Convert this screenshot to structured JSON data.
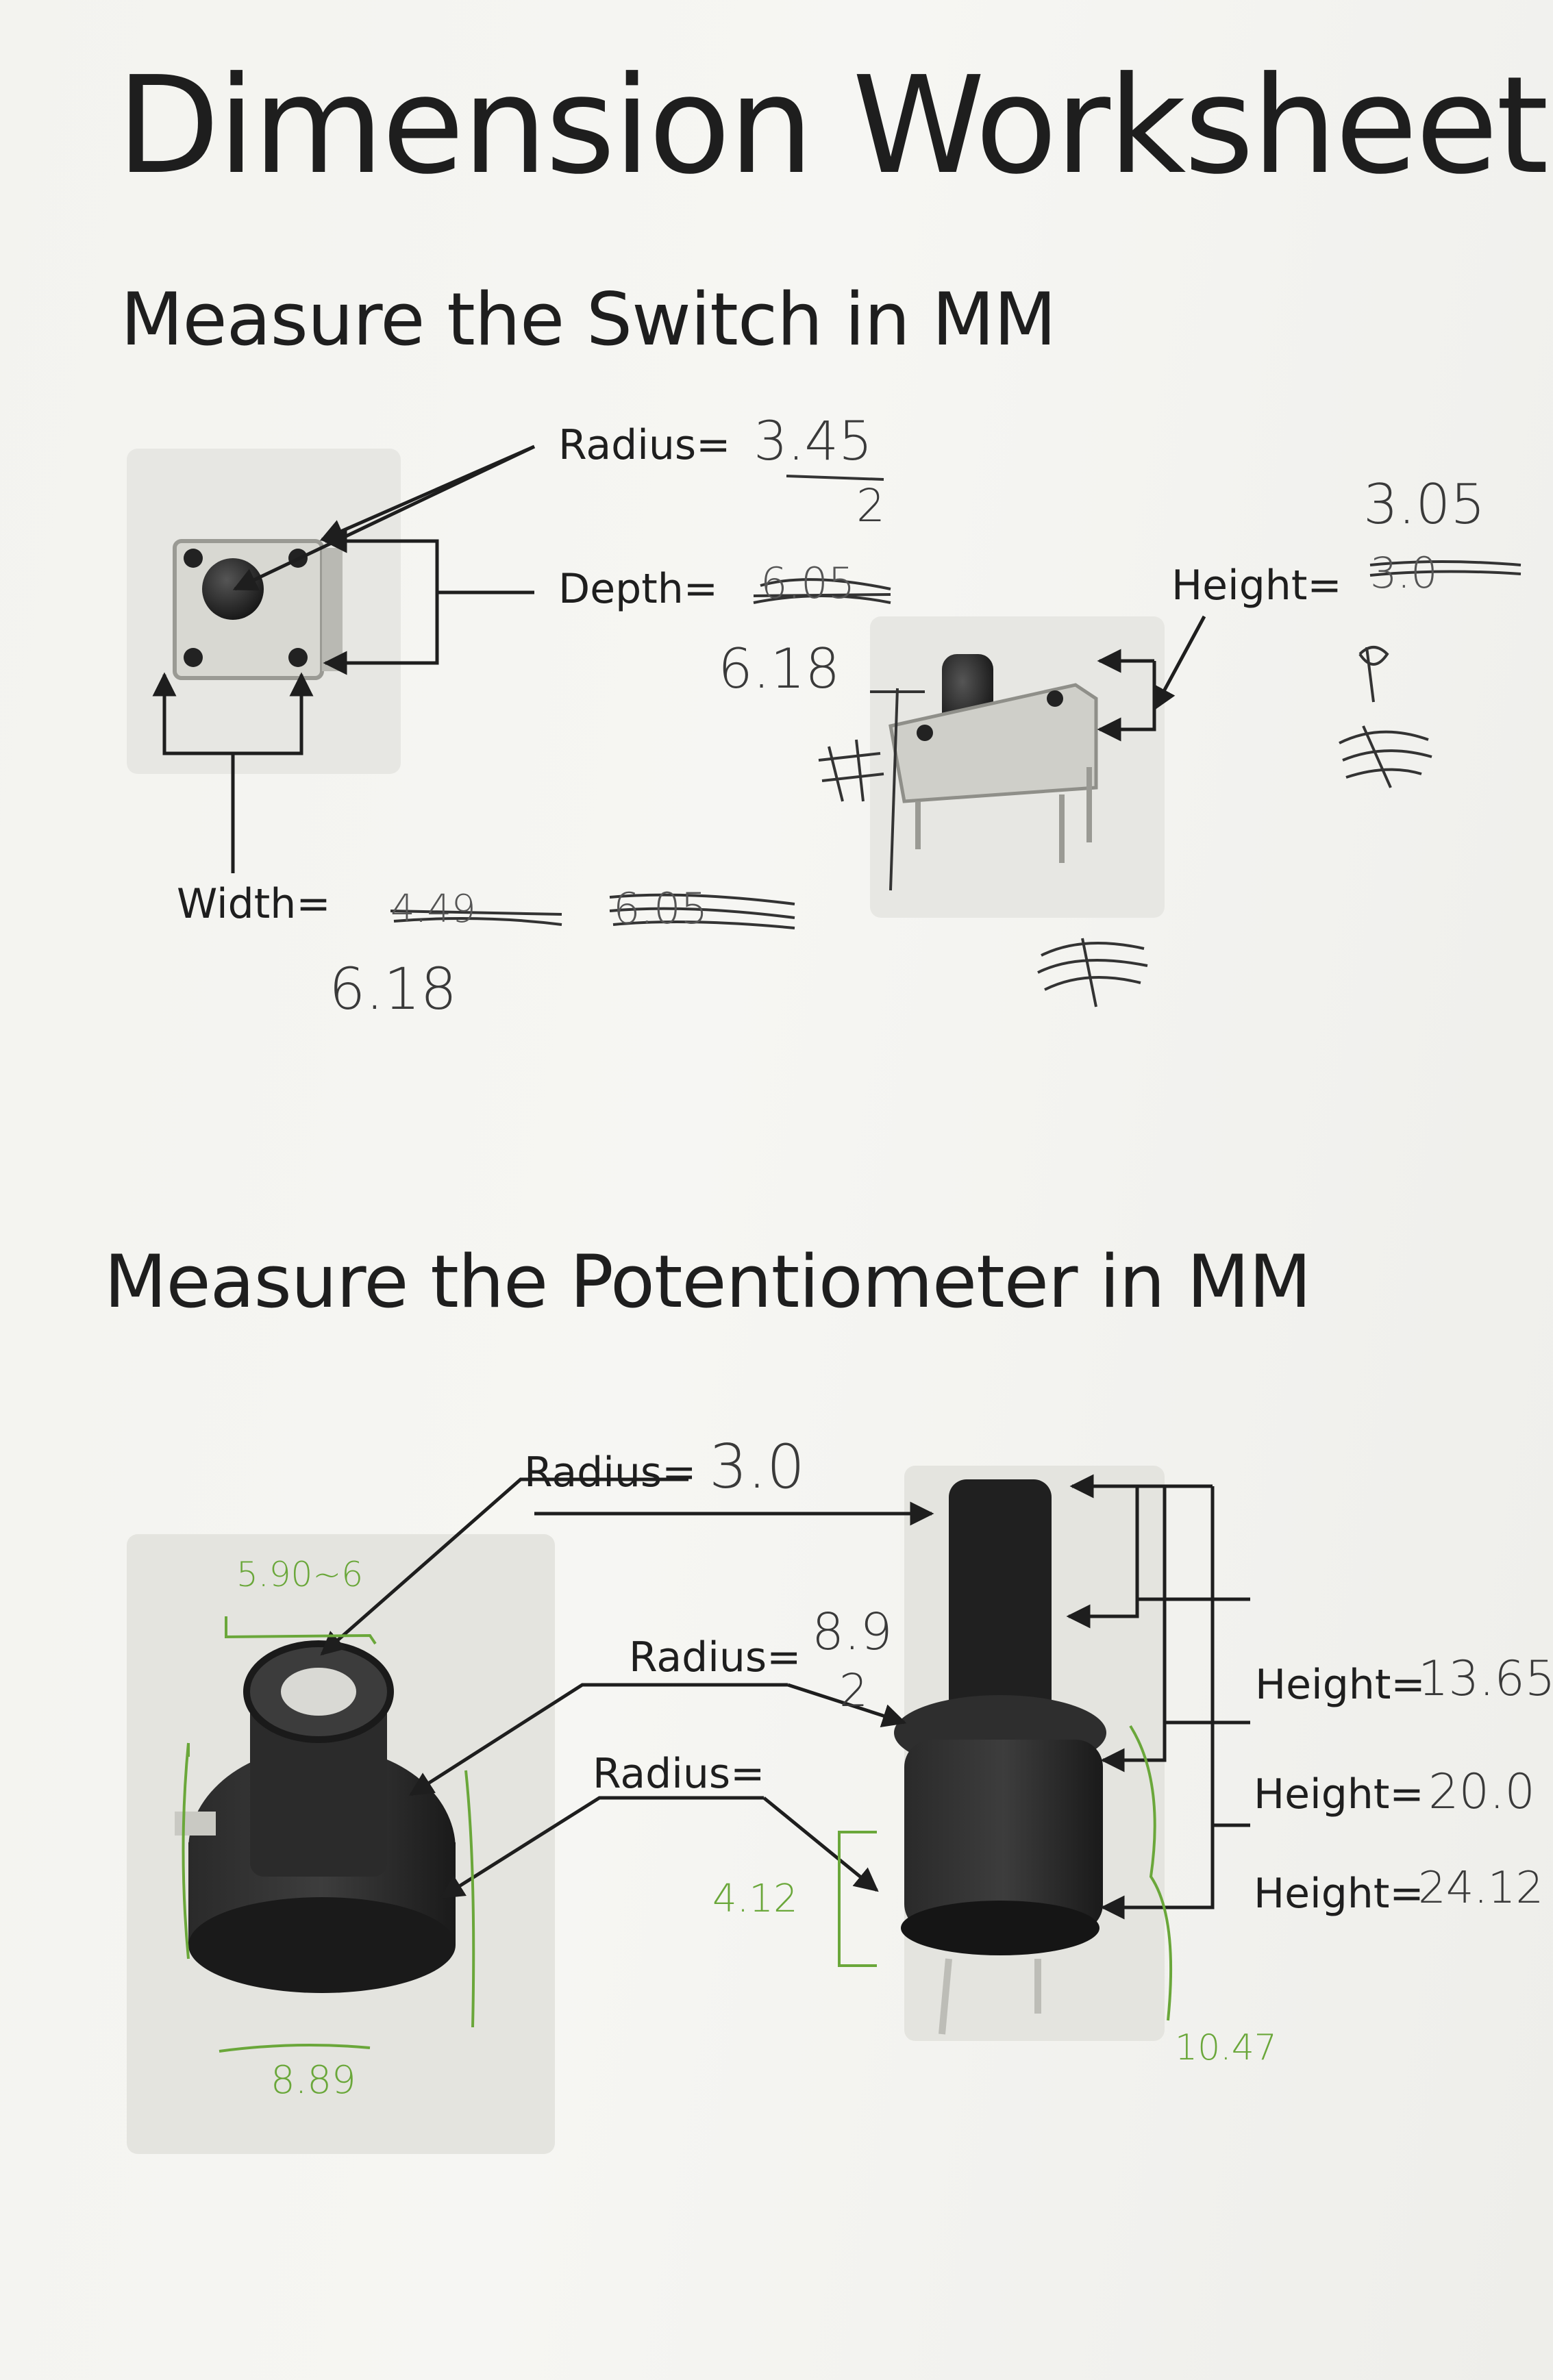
{
  "title": "Dimension Worksheet",
  "switch_section": {
    "heading": "Measure the Switch in MM",
    "radius_label": "Radius=",
    "radius_value": "3.45",
    "radius_divisor": "2",
    "depth_label": "Depth=",
    "depth_crossed": "6.05",
    "depth_value": "6.18",
    "height_label": "Height=",
    "height_value": "3.05",
    "height_crossed": "3.0",
    "width_label": "Width=",
    "width_crossed_1": "4.49",
    "width_crossed_2": "6.05",
    "width_value": "6.18"
  },
  "pot_section": {
    "heading": "Measure the Potentiometer in MM",
    "radius_1_label": "Radius=",
    "radius_1_value": "3.0",
    "radius_2_label": "Radius=",
    "radius_2_value": "8.9",
    "radius_2_divisor": "2",
    "radius_3_label": "Radius=",
    "height_1_label": "Height=",
    "height_1_value": "13.65",
    "height_2_label": "Height=",
    "height_2_value": "20.0",
    "height_3_label": "Height=",
    "height_3_value": "24.12",
    "green_top": "5.90~6",
    "green_left_bottom": "8.89",
    "green_side": "4.12",
    "green_right_bottom": "10.47"
  }
}
